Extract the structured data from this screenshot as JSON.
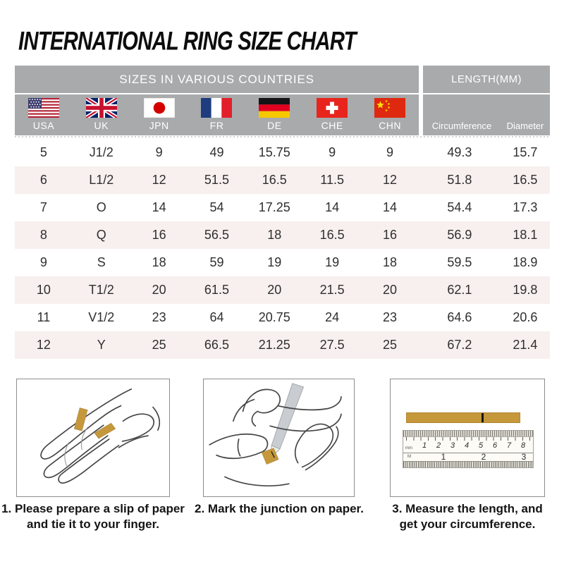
{
  "page": {
    "title": "INTERNATIONAL RING SIZE CHART"
  },
  "chart_data": {
    "type": "table",
    "title": "INTERNATIONAL RING SIZE CHART",
    "header_groups": [
      {
        "label": "SIZES IN VARIOUS COUNTRIES",
        "span": 7
      },
      {
        "label": "LENGTH(MM)",
        "span": 2
      }
    ],
    "columns": [
      "USA",
      "UK",
      "JPN",
      "FR",
      "DE",
      "CHE",
      "CHN",
      "Circumference",
      "Diameter"
    ],
    "rows": [
      [
        "5",
        "J1/2",
        "9",
        "49",
        "15.75",
        "9",
        "9",
        "49.3",
        "15.7"
      ],
      [
        "6",
        "L1/2",
        "12",
        "51.5",
        "16.5",
        "11.5",
        "12",
        "51.8",
        "16.5"
      ],
      [
        "7",
        "O",
        "14",
        "54",
        "17.25",
        "14",
        "14",
        "54.4",
        "17.3"
      ],
      [
        "8",
        "Q",
        "16",
        "56.5",
        "18",
        "16.5",
        "16",
        "56.9",
        "18.1"
      ],
      [
        "9",
        "S",
        "18",
        "59",
        "19",
        "19",
        "18",
        "59.5",
        "18.9"
      ],
      [
        "10",
        "T1/2",
        "20",
        "61.5",
        "20",
        "21.5",
        "20",
        "62.1",
        "19.8"
      ],
      [
        "11",
        "V1/2",
        "23",
        "64",
        "20.75",
        "24",
        "23",
        "64.6",
        "20.6"
      ],
      [
        "12",
        "Y",
        "25",
        "66.5",
        "21.25",
        "27.5",
        "25",
        "67.2",
        "21.4"
      ]
    ]
  },
  "table": {
    "header_left": "SIZES IN VARIOUS COUNTRIES",
    "header_right": "LENGTH(MM)",
    "countries": [
      {
        "code": "USA",
        "flag": "usa-flag"
      },
      {
        "code": "UK",
        "flag": "uk-flag"
      },
      {
        "code": "JPN",
        "flag": "japan-flag"
      },
      {
        "code": "FR",
        "flag": "france-flag"
      },
      {
        "code": "DE",
        "flag": "germany-flag"
      },
      {
        "code": "CHE",
        "flag": "switzerland-flag"
      },
      {
        "code": "CHN",
        "flag": "china-flag"
      }
    ],
    "length_columns": [
      "Circumference",
      "Diameter"
    ],
    "colors": {
      "header_bg": "#a8aaac",
      "header_text": "#ffffff",
      "row_alt_bg": "#f7f0ee",
      "cell_text": "#2f2f2f",
      "paper_strip_gold": "#c6983c"
    }
  },
  "steps": [
    {
      "caption_line1": "1. Please prepare a slip of paper",
      "caption_line2": "and tie it to your finger.",
      "illustration": "hand-with-paper-strip"
    },
    {
      "caption_line1": "2. Mark the junction on paper.",
      "caption_line2": "",
      "illustration": "mark-junction-with-pen"
    },
    {
      "caption_line1": "3. Measure the length, and",
      "caption_line2": "get your circumference.",
      "illustration": "paper-strip-and-ruler"
    }
  ],
  "ruler": {
    "cm_numbers": [
      "1",
      "2",
      "3",
      "4",
      "5",
      "6",
      "7",
      "8"
    ],
    "inch_numbers": [
      "1",
      "2",
      "3"
    ],
    "cm_unit_label": "mm",
    "inch_unit_label": "M"
  }
}
